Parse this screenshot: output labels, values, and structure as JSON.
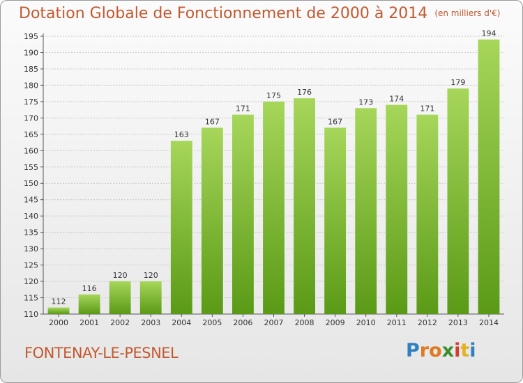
{
  "title": "Dotation Globale de Fonctionnement de 2000 à 2014",
  "unit": "(en milliers d'€)",
  "town": "FONTENAY-LE-PESNEL",
  "logo": {
    "letters": [
      "P",
      "r",
      "o",
      "x",
      "i",
      "t",
      "i"
    ],
    "colors": [
      "#2f7fc1",
      "#e07a22",
      "#e07a22",
      "#3a8f2a",
      "#d23d2d",
      "#e0b322",
      "#2f7fc1"
    ]
  },
  "colors": {
    "bar_light": "#a6d65a",
    "bar_dark": "#5a9a16",
    "axis": "#555555",
    "grid": "#c8c8c8",
    "text": "#333333"
  },
  "chart_data": {
    "type": "bar",
    "categories": [
      "2000",
      "2001",
      "2002",
      "2003",
      "2004",
      "2005",
      "2006",
      "2007",
      "2008",
      "2009",
      "2010",
      "2011",
      "2012",
      "2013",
      "2014"
    ],
    "values": [
      112,
      116,
      120,
      120,
      163,
      167,
      171,
      175,
      176,
      167,
      173,
      174,
      171,
      179,
      194
    ],
    "ylim": [
      110,
      195
    ],
    "yticks": [
      110,
      115,
      120,
      125,
      130,
      135,
      140,
      145,
      150,
      155,
      160,
      165,
      170,
      175,
      180,
      185,
      190,
      195
    ],
    "grid": true,
    "value_labels": true
  }
}
